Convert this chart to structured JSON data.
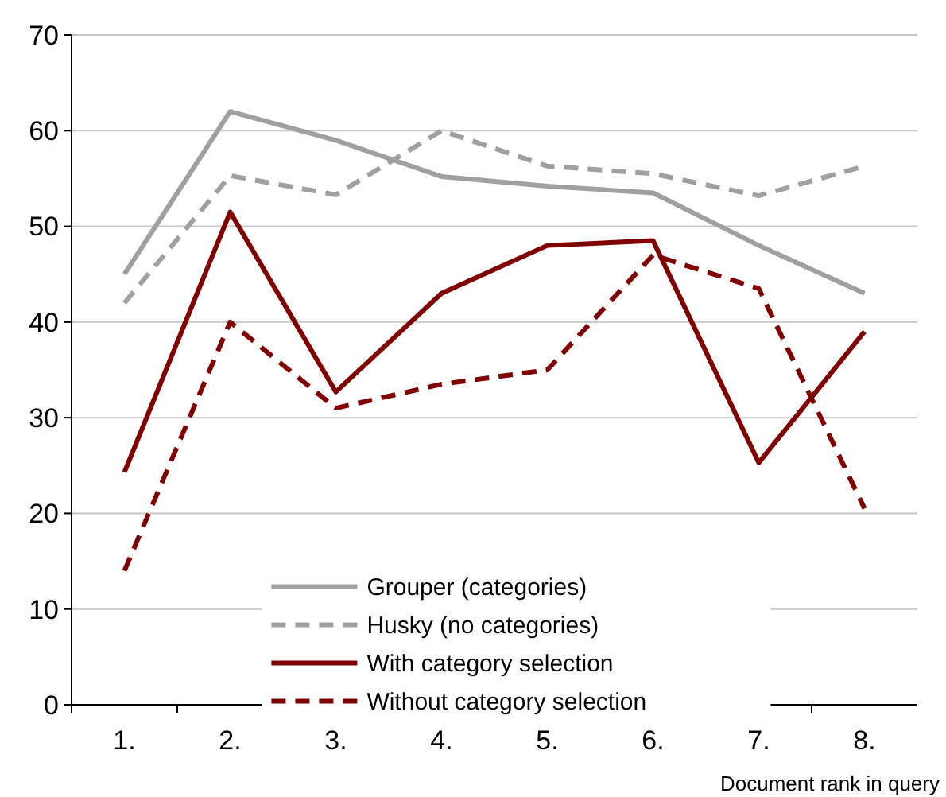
{
  "chart_data": {
    "type": "line",
    "xlabel": "Document rank in query",
    "categories": [
      "1.",
      "2.",
      "3.",
      "4.",
      "5.",
      "6.",
      "7.",
      "8."
    ],
    "series": [
      {
        "name": "Grouper (categories)",
        "color": "#a0a0a0",
        "line_style": "solid",
        "values": [
          45,
          62,
          59,
          55.2,
          54.2,
          53.5,
          48,
          43
        ]
      },
      {
        "name": "Husky (no categories)",
        "color": "#a0a0a0",
        "line_style": "dashed",
        "values": [
          42,
          55.3,
          53.3,
          60,
          56.3,
          55.5,
          53.2,
          56.3
        ]
      },
      {
        "name": "With category selection",
        "color": "#800000",
        "line_style": "solid",
        "values": [
          24.3,
          51.5,
          32.7,
          43,
          48,
          48.5,
          25.3,
          39
        ]
      },
      {
        "name": "Without category selection",
        "color": "#800000",
        "line_style": "dashed",
        "values": [
          14,
          40,
          31,
          33.5,
          35,
          47,
          43.5,
          20.5
        ]
      }
    ],
    "ylim": [
      0,
      70
    ],
    "yticks": [
      0,
      10,
      20,
      30,
      40,
      50,
      60,
      70
    ],
    "grid": "y",
    "legend": "bottom",
    "marker": "none"
  }
}
